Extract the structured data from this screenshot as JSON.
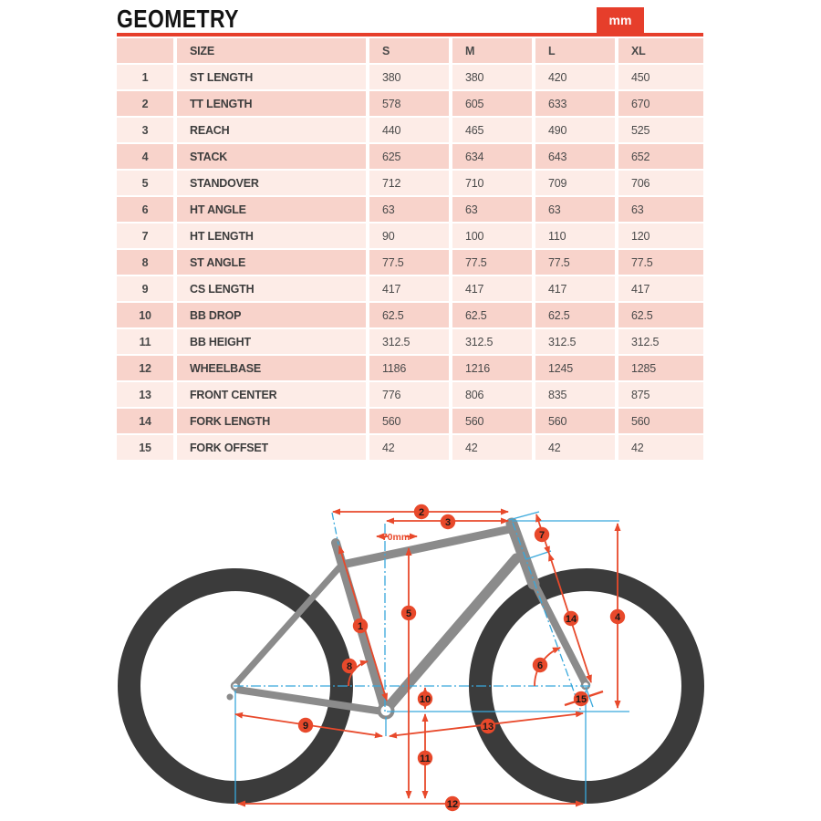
{
  "page": {
    "title": "GEOMETRY",
    "unit_badge": "mm"
  },
  "colors": {
    "accent_red": "#e63e2b",
    "dimension_orange": "#e8492b",
    "construction_cyan": "#38a8dc",
    "frame_gray": "#8b8b8b",
    "wheel_dark": "#3b3b3b",
    "row_dark_pink": "#f8d3cb",
    "row_light_pink": "#fdece7"
  },
  "table": {
    "columns": [
      "",
      "SIZE",
      "S",
      "M",
      "L",
      "XL"
    ],
    "rows": [
      {
        "num": "1",
        "label": "ST LENGTH",
        "values": [
          "380",
          "380",
          "420",
          "450"
        ]
      },
      {
        "num": "2",
        "label": "TT LENGTH",
        "values": [
          "578",
          "605",
          "633",
          "670"
        ]
      },
      {
        "num": "3",
        "label": "REACH",
        "values": [
          "440",
          "465",
          "490",
          "525"
        ]
      },
      {
        "num": "4",
        "label": "STACK",
        "values": [
          "625",
          "634",
          "643",
          "652"
        ]
      },
      {
        "num": "5",
        "label": "STANDOVER",
        "values": [
          "712",
          "710",
          "709",
          "706"
        ]
      },
      {
        "num": "6",
        "label": "HT ANGLE",
        "values": [
          "63",
          "63",
          "63",
          "63"
        ]
      },
      {
        "num": "7",
        "label": "HT LENGTH",
        "values": [
          "90",
          "100",
          "110",
          "120"
        ]
      },
      {
        "num": "8",
        "label": "ST ANGLE",
        "values": [
          "77.5",
          "77.5",
          "77.5",
          "77.5"
        ]
      },
      {
        "num": "9",
        "label": "CS LENGTH",
        "values": [
          "417",
          "417",
          "417",
          "417"
        ]
      },
      {
        "num": "10",
        "label": "BB DROP",
        "values": [
          "62.5",
          "62.5",
          "62.5",
          "62.5"
        ]
      },
      {
        "num": "11",
        "label": "BB HEIGHT",
        "values": [
          "312.5",
          "312.5",
          "312.5",
          "312.5"
        ]
      },
      {
        "num": "12",
        "label": "WHEELBASE",
        "values": [
          "1186",
          "1216",
          "1245",
          "1285"
        ]
      },
      {
        "num": "13",
        "label": "FRONT CENTER",
        "values": [
          "776",
          "806",
          "835",
          "875"
        ]
      },
      {
        "num": "14",
        "label": "FORK LENGTH",
        "values": [
          "560",
          "560",
          "560",
          "560"
        ]
      },
      {
        "num": "15",
        "label": "FORK OFFSET",
        "values": [
          "42",
          "42",
          "42",
          "42"
        ]
      }
    ]
  },
  "diagram": {
    "stem_label": "70mm",
    "callouts": [
      "1",
      "2",
      "3",
      "4",
      "5",
      "6",
      "7",
      "8",
      "9",
      "10",
      "11",
      "12",
      "13",
      "14",
      "15"
    ]
  }
}
